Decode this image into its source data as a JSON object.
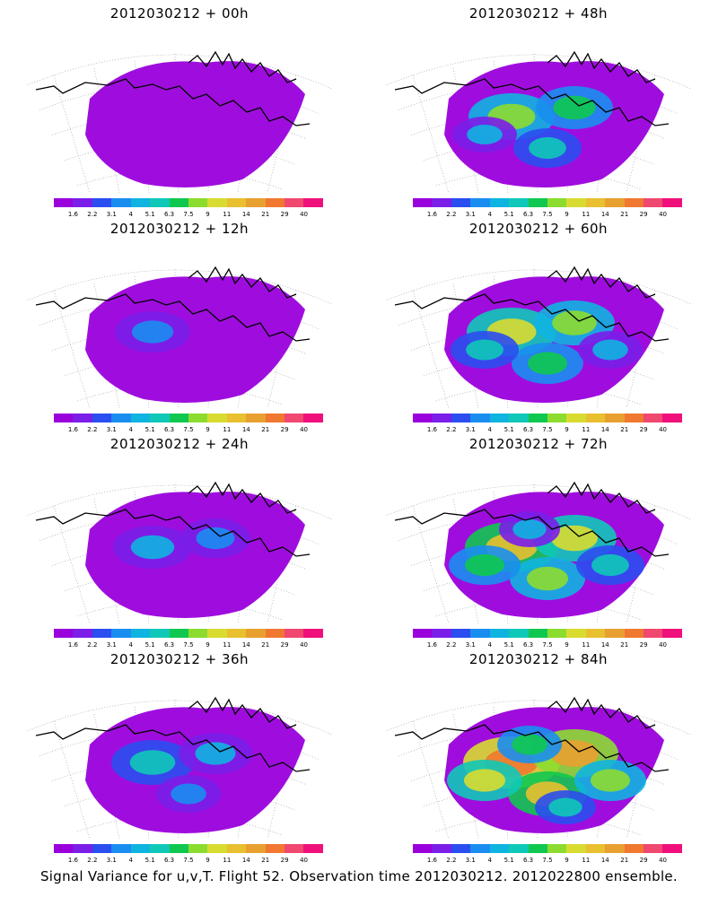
{
  "panels": [
    {
      "title": "2012030212 + 00h",
      "level": 0
    },
    {
      "title": "2012030212 + 48h",
      "level": 4
    },
    {
      "title": "2012030212 + 12h",
      "level": 1
    },
    {
      "title": "2012030212 + 60h",
      "level": 5
    },
    {
      "title": "2012030212 + 24h",
      "level": 2
    },
    {
      "title": "2012030212 + 72h",
      "level": 6
    },
    {
      "title": "2012030212 + 36h",
      "level": 3
    },
    {
      "title": "2012030212 + 84h",
      "level": 7
    }
  ],
  "colorbar": {
    "colors": [
      "#9a00dc",
      "#7a1ee8",
      "#2a4ef0",
      "#1a8ef0",
      "#10b4e0",
      "#10c8b8",
      "#10c850",
      "#8cdc30",
      "#d8dc30",
      "#e8c030",
      "#e8a030",
      "#f07830",
      "#f04870",
      "#f0107c"
    ],
    "labels": [
      "1.6",
      "2.2",
      "3.1",
      "4",
      "5.1",
      "6.3",
      "7.5",
      "9",
      "11",
      "14",
      "21",
      "29",
      "40"
    ]
  },
  "caption": "Signal Variance for u,v,T. Flight 52. Observation time 2012030212. 2012022800 ensemble."
}
